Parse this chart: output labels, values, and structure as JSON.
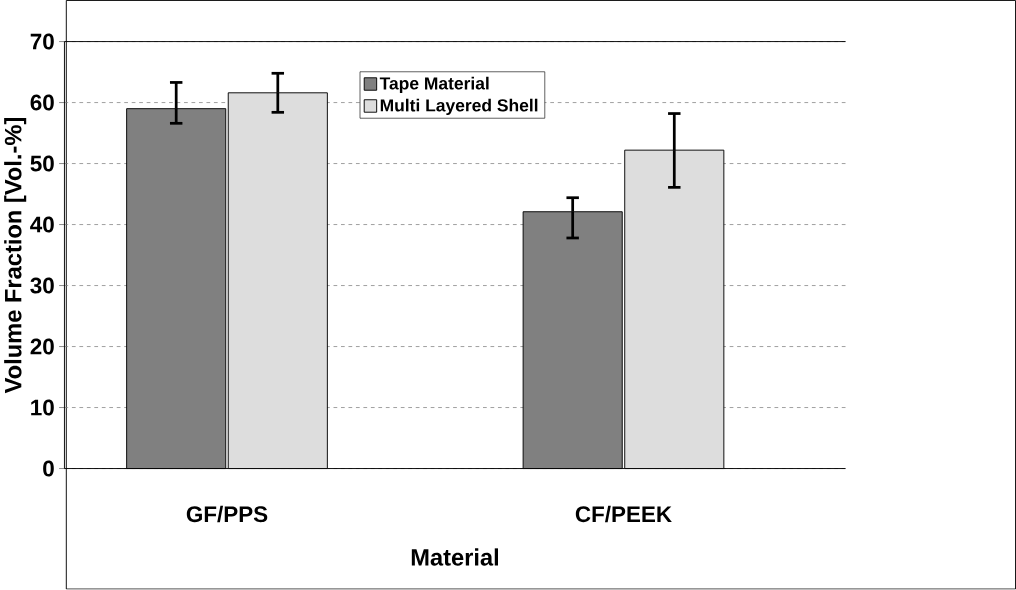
{
  "chart_data": {
    "type": "bar",
    "xlabel": "Material",
    "ylabel": "Volume Fraction  [Vol.-%]",
    "categories": [
      "GF/PPS",
      "CF/PEEK"
    ],
    "series": [
      {
        "name": "Tape Material",
        "color": "#808080",
        "values": [
          59.0,
          42.1
        ],
        "errors": [
          [
            56.6,
            63.3
          ],
          [
            37.8,
            44.4
          ]
        ]
      },
      {
        "name": "Multi Layered Shell",
        "color": "#dddddd",
        "values": [
          61.6,
          52.2
        ],
        "errors": [
          [
            58.4,
            64.8
          ],
          [
            46.1,
            58.2
          ]
        ]
      }
    ],
    "ylim": [
      0,
      70
    ],
    "yticks": [
      0,
      10,
      20,
      30,
      40,
      50,
      60,
      70
    ],
    "grid": "y",
    "legend": "top"
  }
}
